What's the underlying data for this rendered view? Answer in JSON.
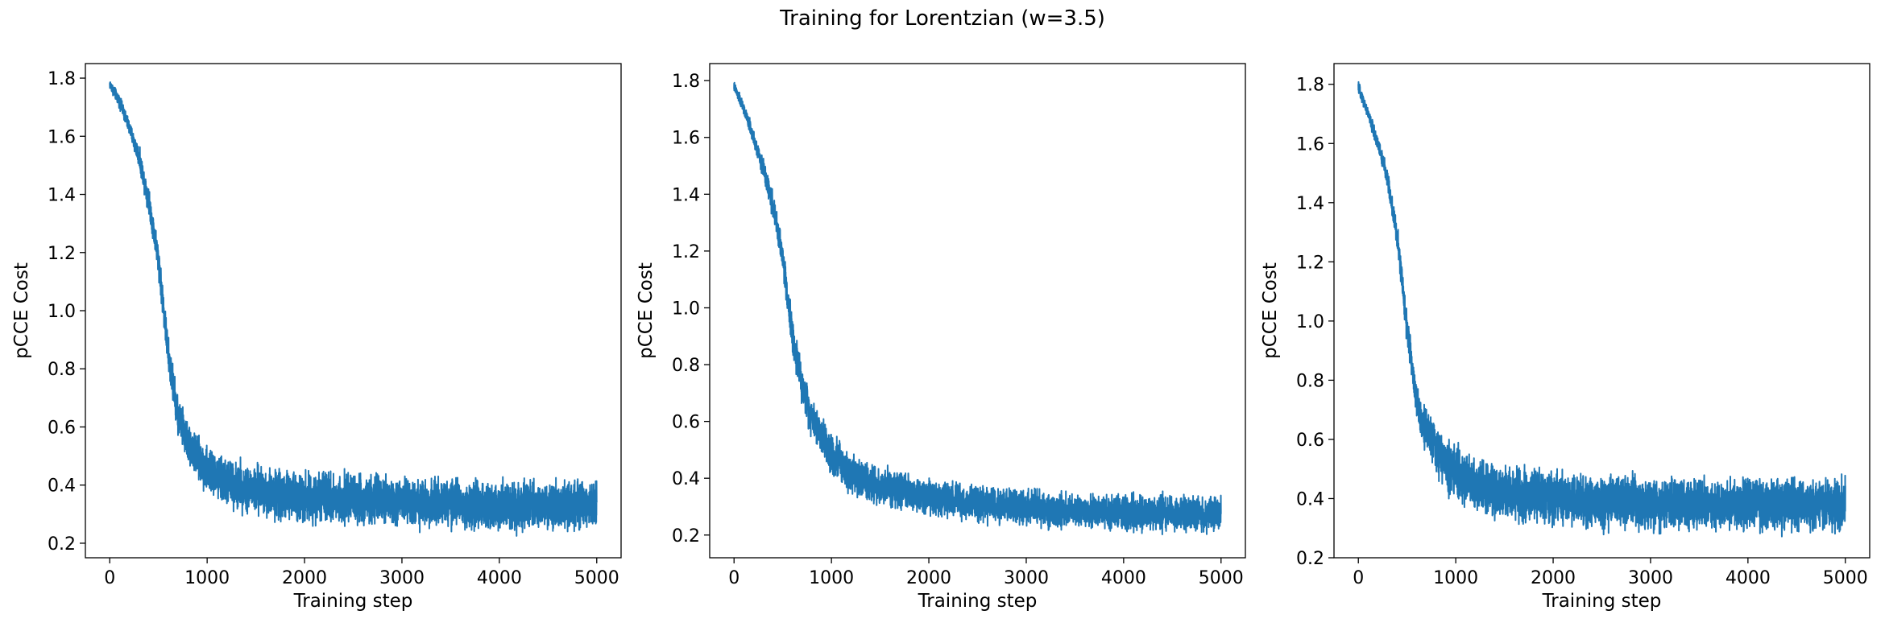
{
  "figure": {
    "title": "Training for Lorentzian (w=3.5)"
  },
  "line_color": "#1f77b4",
  "chart_data": [
    {
      "type": "line",
      "xlabel": "Training step",
      "ylabel": "pCCE Cost",
      "xlim": [
        -250,
        5250
      ],
      "ylim": [
        0.15,
        1.85
      ],
      "xticks": [
        "0",
        "1000",
        "2000",
        "3000",
        "4000",
        "5000"
      ],
      "xtick_values": [
        0,
        1000,
        2000,
        3000,
        4000,
        5000
      ],
      "yticks": [
        "0.2",
        "0.4",
        "0.6",
        "0.8",
        "1.0",
        "1.2",
        "1.4",
        "1.6",
        "1.8"
      ],
      "ytick_values": [
        0.2,
        0.4,
        0.6,
        0.8,
        1.0,
        1.2,
        1.4,
        1.6,
        1.8
      ],
      "grid": false,
      "series": [
        {
          "x": [
            0,
            100,
            200,
            300,
            400,
            500,
            600,
            700,
            800,
            900,
            1000,
            1200,
            1500,
            2000,
            2500,
            3000,
            3500,
            4000,
            4500,
            5000
          ],
          "y": [
            1.78,
            1.72,
            1.63,
            1.53,
            1.38,
            1.18,
            0.85,
            0.64,
            0.55,
            0.49,
            0.45,
            0.41,
            0.38,
            0.36,
            0.35,
            0.34,
            0.335,
            0.33,
            0.33,
            0.33
          ],
          "noise": [
            0.01,
            0.012,
            0.015,
            0.02,
            0.025,
            0.03,
            0.035,
            0.038,
            0.04,
            0.042,
            0.044,
            0.046,
            0.048,
            0.048,
            0.047,
            0.046,
            0.046,
            0.046,
            0.046,
            0.046
          ]
        }
      ]
    },
    {
      "type": "line",
      "xlabel": "Training step",
      "ylabel": "pCCE Cost",
      "xlim": [
        -250,
        5250
      ],
      "ylim": [
        0.12,
        1.86
      ],
      "xticks": [
        "0",
        "1000",
        "2000",
        "3000",
        "4000",
        "5000"
      ],
      "xtick_values": [
        0,
        1000,
        2000,
        3000,
        4000,
        5000
      ],
      "yticks": [
        "0.2",
        "0.4",
        "0.6",
        "0.8",
        "1.0",
        "1.2",
        "1.4",
        "1.6",
        "1.8"
      ],
      "ytick_values": [
        0.2,
        0.4,
        0.6,
        0.8,
        1.0,
        1.2,
        1.4,
        1.6,
        1.8
      ],
      "grid": false,
      "series": [
        {
          "x": [
            0,
            100,
            200,
            300,
            400,
            500,
            600,
            700,
            800,
            900,
            1000,
            1200,
            1500,
            2000,
            2500,
            3000,
            3500,
            4000,
            4500,
            5000
          ],
          "y": [
            1.78,
            1.7,
            1.6,
            1.49,
            1.36,
            1.18,
            0.9,
            0.72,
            0.62,
            0.55,
            0.49,
            0.42,
            0.37,
            0.33,
            0.31,
            0.295,
            0.285,
            0.28,
            0.275,
            0.275
          ],
          "noise": [
            0.01,
            0.012,
            0.015,
            0.02,
            0.025,
            0.03,
            0.034,
            0.036,
            0.038,
            0.04,
            0.04,
            0.04,
            0.038,
            0.036,
            0.035,
            0.034,
            0.034,
            0.034,
            0.034,
            0.034
          ]
        }
      ]
    },
    {
      "type": "line",
      "xlabel": "Training step",
      "ylabel": "pCCE Cost",
      "xlim": [
        -250,
        5250
      ],
      "ylim": [
        0.2,
        1.87
      ],
      "xticks": [
        "0",
        "1000",
        "2000",
        "3000",
        "4000",
        "5000"
      ],
      "xtick_values": [
        0,
        1000,
        2000,
        3000,
        4000,
        5000
      ],
      "yticks": [
        "0.2",
        "0.4",
        "0.6",
        "0.8",
        "1.0",
        "1.2",
        "1.4",
        "1.6",
        "1.8"
      ],
      "ytick_values": [
        0.2,
        0.4,
        0.6,
        0.8,
        1.0,
        1.2,
        1.4,
        1.6,
        1.8
      ],
      "grid": false,
      "series": [
        {
          "x": [
            0,
            100,
            200,
            300,
            400,
            500,
            600,
            700,
            800,
            900,
            1000,
            1200,
            1500,
            2000,
            2500,
            3000,
            3500,
            4000,
            4500,
            5000
          ],
          "y": [
            1.79,
            1.7,
            1.6,
            1.48,
            1.28,
            0.98,
            0.72,
            0.63,
            0.57,
            0.52,
            0.49,
            0.45,
            0.42,
            0.4,
            0.39,
            0.385,
            0.38,
            0.38,
            0.38,
            0.38
          ],
          "noise": [
            0.01,
            0.012,
            0.015,
            0.02,
            0.025,
            0.032,
            0.038,
            0.042,
            0.045,
            0.048,
            0.05,
            0.05,
            0.05,
            0.05,
            0.05,
            0.05,
            0.05,
            0.05,
            0.05,
            0.05
          ]
        }
      ]
    }
  ]
}
